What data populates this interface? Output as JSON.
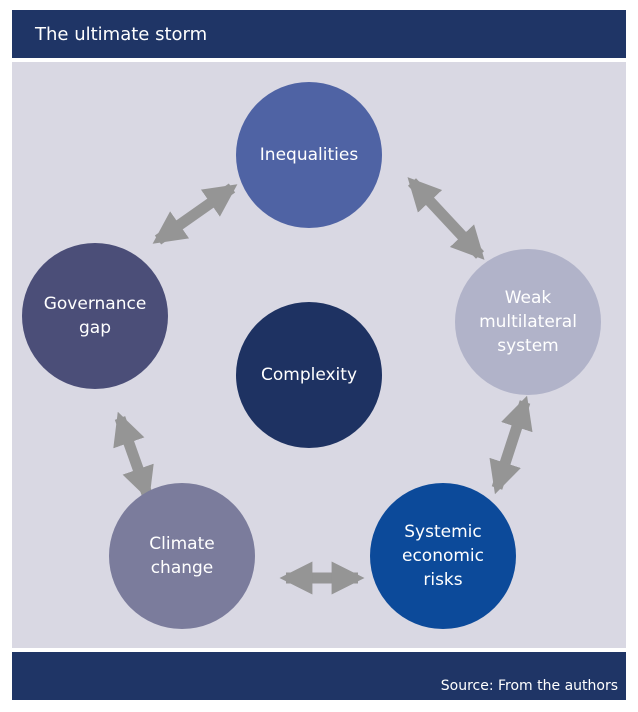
{
  "header": {
    "title": "The ultimate storm"
  },
  "nodes": [
    {
      "lines": [
        "Inequalities"
      ]
    },
    {
      "lines": [
        "Weak",
        "multilateral",
        "system"
      ]
    },
    {
      "lines": [
        "Systemic",
        "economic",
        "risks"
      ]
    },
    {
      "lines": [
        "Climate",
        "change"
      ]
    },
    {
      "lines": [
        "Governance",
        "gap"
      ]
    },
    {
      "lines": [
        "Complexity"
      ]
    }
  ],
  "footer": {
    "source": "Source: From the authors"
  }
}
